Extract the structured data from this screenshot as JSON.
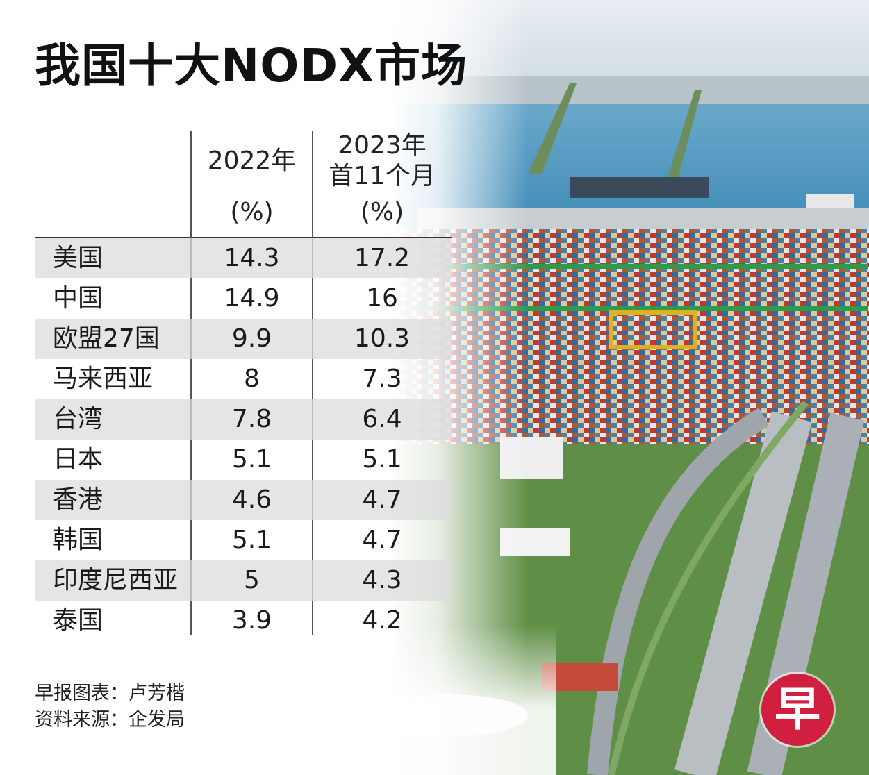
{
  "title": "我国十大NODX市场",
  "table": {
    "headers": {
      "col1_year": "2022年",
      "col1_unit": "(%)",
      "col2_line1": "2023年",
      "col2_line2": "首11个月",
      "col2_unit": "(%)"
    },
    "rows": [
      {
        "market": "美国",
        "y2022": "14.3",
        "y2023": "17.2"
      },
      {
        "market": "中国",
        "y2022": "14.9",
        "y2023": "16"
      },
      {
        "market": "欧盟27国",
        "y2022": "9.9",
        "y2023": "10.3"
      },
      {
        "market": "马来西亚",
        "y2022": "8",
        "y2023": "7.3"
      },
      {
        "market": "台湾",
        "y2022": "7.8",
        "y2023": "6.4"
      },
      {
        "market": "日本",
        "y2022": "5.1",
        "y2023": "5.1"
      },
      {
        "market": "香港",
        "y2022": "4.6",
        "y2023": "4.7"
      },
      {
        "market": "韩国",
        "y2022": "5.1",
        "y2023": "4.7"
      },
      {
        "market": "印度尼西亚",
        "y2022": "5",
        "y2023": "4.3"
      },
      {
        "market": "泰国",
        "y2022": "3.9",
        "y2023": "4.2"
      }
    ]
  },
  "credits": {
    "line1": "早报图表：卢芳楷",
    "line2": "资料来源：企发局"
  },
  "logo_text": "早",
  "colors": {
    "logo": "#d11f3f",
    "row_stripe": "#dcdcdc",
    "sea": "#5a9fc4",
    "crane_green": "#2f9a4a"
  },
  "chart_data": {
    "type": "table",
    "title": "我国十大NODX市场",
    "columns": [
      "2022年 (%)",
      "2023年 首11个月 (%)"
    ],
    "categories": [
      "美国",
      "中国",
      "欧盟27国",
      "马来西亚",
      "台湾",
      "日本",
      "香港",
      "韩国",
      "印度尼西亚",
      "泰国"
    ],
    "series": [
      {
        "name": "2022年",
        "values": [
          14.3,
          14.9,
          9.9,
          8,
          7.8,
          5.1,
          4.6,
          5.1,
          5,
          3.9
        ]
      },
      {
        "name": "2023年首11个月",
        "values": [
          17.2,
          16,
          10.3,
          7.3,
          6.4,
          5.1,
          4.7,
          4.7,
          4.3,
          4.2
        ]
      }
    ]
  }
}
